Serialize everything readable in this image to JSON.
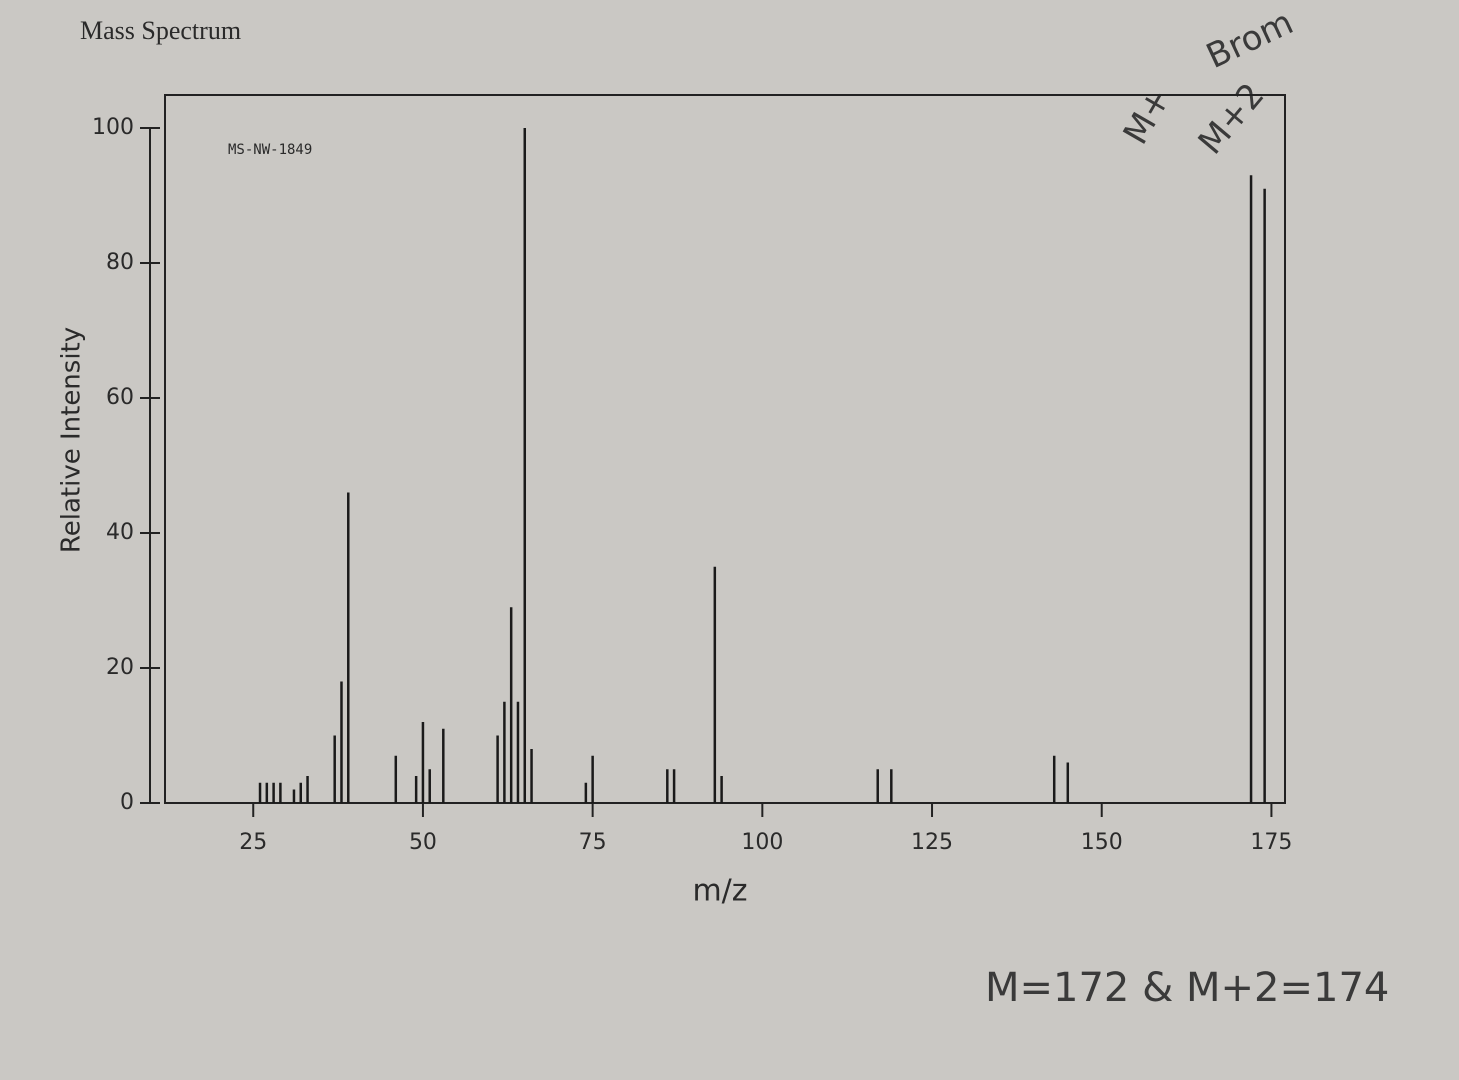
{
  "chart_data": {
    "type": "stem",
    "title": "Mass Spectrum",
    "subtitle": "MS-NW-1849",
    "x_label": "m/z",
    "y_label": "Relative Intensity",
    "x": [
      26,
      27,
      28,
      29,
      31,
      32,
      33,
      37,
      38,
      39,
      46,
      49,
      50,
      51,
      53,
      61,
      62,
      63,
      64,
      65,
      66,
      74,
      75,
      86,
      87,
      93,
      94,
      117,
      119,
      143,
      145,
      172,
      174
    ],
    "values": [
      3,
      3,
      3,
      3,
      2,
      3,
      4,
      10,
      18,
      46,
      7,
      4,
      12,
      5,
      11,
      10,
      15,
      29,
      15,
      100,
      8,
      3,
      7,
      5,
      5,
      35,
      4,
      5,
      5,
      7,
      6,
      93,
      91
    ],
    "color": "#1a1a1a",
    "xlim": [
      12,
      177
    ],
    "xticks": [
      25,
      50,
      75,
      100,
      125,
      150,
      175
    ],
    "ylim": [
      0,
      100
    ],
    "yticks": [
      0,
      20,
      40,
      60,
      80,
      100
    ],
    "annotations": [
      "M+",
      "M+2",
      "Brom",
      "M=172 & M+2=174"
    ]
  }
}
